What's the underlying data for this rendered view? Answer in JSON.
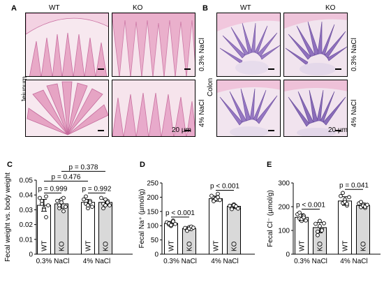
{
  "panels": {
    "A": {
      "letter": "A",
      "col_labels": [
        "WT",
        "KO"
      ],
      "row_labels": [
        "0.3% NaCl",
        "4% NaCl"
      ],
      "tissue": "Jejunum",
      "scale": "20 µm"
    },
    "B": {
      "letter": "B",
      "col_labels": [
        "WT",
        "KO"
      ],
      "row_labels": [
        "0.3% NaCl",
        "4% NaCl"
      ],
      "tissue": "Colon",
      "scale": "20 µm"
    },
    "C": {
      "letter": "C"
    },
    "D": {
      "letter": "D"
    },
    "E": {
      "letter": "E"
    }
  },
  "chart_data": [
    {
      "type": "bar",
      "panel": "C",
      "ylabel": "Fecal weight vs. body weight",
      "ylim": [
        0,
        0.05
      ],
      "yticks": [
        "0",
        "0.01",
        "0.02",
        "0.03",
        "0.04",
        "0.05"
      ],
      "ytick_values": [
        0,
        0.01,
        0.02,
        0.03,
        0.04,
        0.05
      ],
      "bar_labels": [
        "WT",
        "KO",
        "WT",
        "KO"
      ],
      "group_labels": [
        "0.3% NaCl",
        "4% NaCl"
      ],
      "values": [
        0.033,
        0.034,
        0.035,
        0.035
      ],
      "errors": [
        0.004,
        0.003,
        0.002,
        0.002
      ],
      "points": [
        [
          0.038,
          0.034,
          0.031,
          0.025,
          0.036,
          0.03,
          0.039,
          0.033
        ],
        [
          0.036,
          0.031,
          0.037,
          0.029,
          0.033,
          0.035,
          0.038,
          0.032
        ],
        [
          0.037,
          0.034,
          0.031,
          0.036,
          0.039,
          0.033,
          0.035,
          0.032
        ],
        [
          0.038,
          0.034,
          0.033,
          0.036,
          0.031,
          0.037,
          0.035,
          0.033
        ]
      ],
      "colors": [
        "#ffffff",
        "#d9d9d9",
        "#ffffff",
        "#d9d9d9"
      ],
      "comparisons": [
        {
          "text": "p = 0.999",
          "pair": [
            0,
            1
          ],
          "level": 0
        },
        {
          "text": "p = 0.992",
          "pair": [
            2,
            3
          ],
          "level": 0
        },
        {
          "text": "p = 0.476",
          "pair": [
            0,
            2
          ],
          "level": 1
        },
        {
          "text": "p = 0.378",
          "pair": [
            1,
            3
          ],
          "level": 2
        }
      ]
    },
    {
      "type": "bar",
      "panel": "D",
      "ylabel": "Fecal Na⁺ (µmol/g)",
      "ylim": [
        0,
        250
      ],
      "yticks": [
        "0",
        "50",
        "100",
        "150",
        "200",
        "250"
      ],
      "ytick_values": [
        0,
        50,
        100,
        150,
        200,
        250
      ],
      "bar_labels": [
        "WT",
        "KO",
        "WT",
        "KO"
      ],
      "group_labels": [
        "0.3% NaCl",
        "4% NaCl"
      ],
      "values": [
        108,
        90,
        195,
        168
      ],
      "errors": [
        7,
        6,
        9,
        7
      ],
      "points": [
        [
          112,
          104,
          99,
          118,
          108,
          102,
          115,
          106
        ],
        [
          92,
          85,
          95,
          88,
          82,
          90,
          97,
          93
        ],
        [
          205,
          189,
          197,
          212,
          186,
          194,
          200,
          190
        ],
        [
          170,
          162,
          175,
          165,
          158,
          172,
          168,
          160
        ]
      ],
      "colors": [
        "#ffffff",
        "#d9d9d9",
        "#ffffff",
        "#d9d9d9"
      ],
      "comparisons": [
        {
          "text": "p < 0.001",
          "pair": [
            0,
            1
          ],
          "level": 0
        },
        {
          "text": "p < 0.001",
          "pair": [
            2,
            3
          ],
          "level": 0
        }
      ]
    },
    {
      "type": "bar",
      "panel": "E",
      "ylabel": "Fecal Cl⁻ (µmol/g)",
      "ylim": [
        0,
        300
      ],
      "yticks": [
        "0",
        "100",
        "200",
        "300"
      ],
      "ytick_values": [
        0,
        100,
        200,
        300
      ],
      "bar_labels": [
        "WT",
        "KO",
        "WT",
        "KO"
      ],
      "group_labels": [
        "0.3% NaCl",
        "4% NaCl"
      ],
      "values": [
        155,
        112,
        224,
        205
      ],
      "errors": [
        15,
        22,
        18,
        10
      ],
      "points": [
        [
          168,
          150,
          140,
          162,
          175,
          148,
          155,
          142
        ],
        [
          128,
          95,
          140,
          105,
          80,
          118,
          100,
          130
        ],
        [
          245,
          215,
          230,
          205,
          258,
          220,
          212,
          240
        ],
        [
          214,
          198,
          210,
          195,
          220,
          205,
          200,
          208
        ]
      ],
      "colors": [
        "#ffffff",
        "#d9d9d9",
        "#ffffff",
        "#d9d9d9"
      ],
      "comparisons": [
        {
          "text": "p < 0.001",
          "pair": [
            0,
            1
          ],
          "level": 0
        },
        {
          "text": "p = 0.041",
          "pair": [
            2,
            3
          ],
          "level": 0
        }
      ]
    }
  ]
}
